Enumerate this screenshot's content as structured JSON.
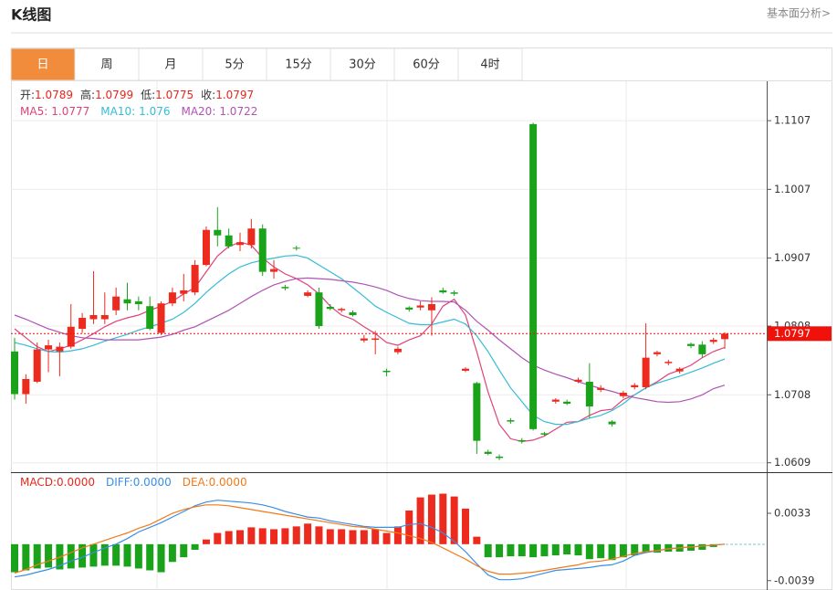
{
  "header": {
    "title": "K线图",
    "link": "基本面分析>"
  },
  "tabs": [
    "日",
    "周",
    "月",
    "5分",
    "15分",
    "30分",
    "60分",
    "4时"
  ],
  "chart_data": [
    {
      "type": "candlestick",
      "up_color": "#ec2a1e",
      "down_color": "#1aa31a",
      "info_labels": [
        "开:",
        "高:",
        "低:",
        "收:"
      ],
      "open": [
        1.0771,
        1.0709,
        1.0727,
        1.0774,
        1.0771,
        1.0778,
        1.0804,
        1.0818,
        1.0818,
        1.0831,
        1.0847,
        1.0844,
        1.0837,
        1.0798,
        1.0841,
        1.0855,
        1.0857,
        1.0897,
        1.0948,
        1.094,
        1.0926,
        1.0926,
        1.095,
        1.0887,
        1.0865,
        1.0922,
        1.0852,
        1.0857,
        1.0836,
        1.0831,
        1.0828,
        1.0787,
        1.0788,
        1.0743,
        1.077,
        1.0835,
        1.0835,
        1.0831,
        1.086,
        1.0857,
        1.0743,
        1.0725,
        1.0625,
        1.0618,
        1.0671,
        1.0642,
        1.1102,
        1.0652,
        1.0698,
        1.0698,
        1.0727,
        1.0727,
        1.0715,
        1.0669,
        1.0706,
        1.0719,
        1.0719,
        1.0767,
        1.0754,
        1.0742,
        1.0782,
        1.0781,
        1.0785,
        1.0789
      ],
      "high": [
        1.0791,
        1.0738,
        1.0784,
        1.0788,
        1.0784,
        1.084,
        1.0827,
        1.0888,
        1.0857,
        1.0864,
        1.0871,
        1.0851,
        1.0851,
        1.0844,
        1.0864,
        1.0884,
        1.0904,
        1.0953,
        1.0981,
        1.095,
        1.0944,
        1.0964,
        1.0956,
        1.0904,
        1.0868,
        1.0925,
        1.086,
        1.0864,
        1.084,
        1.0835,
        1.0831,
        1.0795,
        1.0801,
        1.0746,
        1.0778,
        1.0837,
        1.0844,
        1.085,
        1.0864,
        1.086,
        1.0748,
        1.0727,
        1.0628,
        1.0621,
        1.0674,
        1.0645,
        1.1104,
        1.0654,
        1.0703,
        1.0701,
        1.0733,
        1.0754,
        1.0722,
        1.0671,
        1.0714,
        1.0725,
        1.0812,
        1.0772,
        1.0759,
        1.0748,
        1.0784,
        1.0786,
        1.0791,
        1.0799
      ],
      "low": [
        1.0701,
        1.0695,
        1.0725,
        1.0741,
        1.0735,
        1.0775,
        1.0798,
        1.0811,
        1.0811,
        1.0824,
        1.0831,
        1.0831,
        1.0802,
        1.0795,
        1.0837,
        1.0844,
        1.0853,
        1.0895,
        1.0924,
        1.0921,
        1.0917,
        1.0921,
        1.0881,
        1.0877,
        1.086,
        1.0918,
        1.085,
        1.0804,
        1.0831,
        1.0828,
        1.0822,
        1.0784,
        1.0767,
        1.0735,
        1.0767,
        1.0829,
        1.0831,
        1.0794,
        1.0855,
        1.0852,
        1.0741,
        1.0622,
        1.062,
        1.0613,
        1.0666,
        1.0637,
        1.0656,
        1.0648,
        1.0695,
        1.0693,
        1.0725,
        1.0674,
        1.0712,
        1.0662,
        1.0703,
        1.0716,
        1.0716,
        1.0764,
        1.0751,
        1.0739,
        1.0776,
        1.0762,
        1.0782,
        1.0775
      ],
      "close": [
        1.0709,
        1.0731,
        1.0774,
        1.078,
        1.0778,
        1.0807,
        1.082,
        1.0824,
        1.0824,
        1.0851,
        1.0841,
        1.084,
        1.0804,
        1.0841,
        1.0857,
        1.086,
        1.0897,
        1.0948,
        1.094,
        1.0924,
        1.093,
        1.095,
        1.0887,
        1.0891,
        1.0863,
        1.0921,
        1.0857,
        1.0808,
        1.0833,
        1.0833,
        1.0824,
        1.079,
        1.079,
        1.0741,
        1.0775,
        1.0832,
        1.0838,
        1.084,
        1.0857,
        1.0855,
        1.0746,
        1.0641,
        1.0622,
        1.0616,
        1.0669,
        1.064,
        1.0658,
        1.065,
        1.0701,
        1.0695,
        1.073,
        1.0691,
        1.0718,
        1.0665,
        1.0711,
        1.0722,
        1.0762,
        1.077,
        1.0756,
        1.0746,
        1.0779,
        1.0767,
        1.0788,
        1.0797
      ],
      "series": [
        {
          "label": "MA5:",
          "color": "#e0417a",
          "values": [
            1.0804,
            1.0791,
            1.0778,
            1.0771,
            1.0775,
            1.078,
            1.0788,
            1.0797,
            1.0807,
            1.0815,
            1.082,
            1.0824,
            1.0831,
            1.0837,
            1.0844,
            1.0855,
            1.0864,
            1.0887,
            1.091,
            1.0924,
            1.093,
            1.0926,
            1.0907,
            1.0894,
            1.0884,
            1.0877,
            1.0868,
            1.0855,
            1.0837,
            1.0824,
            1.0818,
            1.0807,
            1.0797,
            1.0784,
            1.078,
            1.0788,
            1.0794,
            1.0811,
            1.0837,
            1.0847,
            1.0824,
            1.0771,
            1.0712,
            1.0665,
            1.0644,
            1.064,
            1.0642,
            1.0648,
            1.0658,
            1.0668,
            1.0669,
            1.0678,
            1.0685,
            1.0687,
            1.0701,
            1.0708,
            1.0718,
            1.0727,
            1.0738,
            1.0744,
            1.0751,
            1.0762,
            1.0771,
            1.0777
          ]
        },
        {
          "label": "MA10:",
          "color": "#35bcd6",
          "values": [
            1.0784,
            1.078,
            1.0775,
            1.0771,
            1.077,
            1.0772,
            1.0775,
            1.078,
            1.0786,
            1.0791,
            1.0796,
            1.0802,
            1.0807,
            1.0812,
            1.0818,
            1.0828,
            1.0841,
            1.0857,
            1.0871,
            1.0884,
            1.0894,
            1.09,
            1.0904,
            1.0907,
            1.091,
            1.0911,
            1.0907,
            1.0897,
            1.0887,
            1.0877,
            1.0864,
            1.0851,
            1.0837,
            1.0828,
            1.082,
            1.0812,
            1.081,
            1.081,
            1.0814,
            1.0818,
            1.0811,
            1.0794,
            1.0771,
            1.0744,
            1.0718,
            1.0698,
            1.0678,
            1.0669,
            1.0665,
            1.0665,
            1.0669,
            1.0674,
            1.0678,
            1.0685,
            1.0695,
            1.0708,
            1.0718,
            1.0725,
            1.073,
            1.0735,
            1.0741,
            1.0747,
            1.0754,
            1.076
          ]
        },
        {
          "label": "MA20:",
          "color": "#b053b5",
          "values": [
            1.0824,
            1.0818,
            1.0811,
            1.0804,
            1.0799,
            1.0794,
            1.0791,
            1.079,
            1.0788,
            1.0788,
            1.0788,
            1.0788,
            1.079,
            1.0792,
            1.0796,
            1.0802,
            1.0807,
            1.0815,
            1.0823,
            1.0831,
            1.0841,
            1.0851,
            1.086,
            1.0868,
            1.0873,
            1.0877,
            1.0878,
            1.0877,
            1.0876,
            1.0874,
            1.0872,
            1.0869,
            1.0865,
            1.086,
            1.0853,
            1.0848,
            1.0845,
            1.0844,
            1.0844,
            1.0843,
            1.0831,
            1.0815,
            1.0802,
            1.0788,
            1.0775,
            1.0762,
            1.0751,
            1.0744,
            1.0738,
            1.0733,
            1.0727,
            1.0722,
            1.0717,
            1.0713,
            1.0708,
            1.0704,
            1.0701,
            1.0698,
            1.0697,
            1.0698,
            1.0702,
            1.0708,
            1.0717,
            1.0722
          ]
        }
      ],
      "last_price": 1.0797,
      "last_color": "#f0120a",
      "ylim": [
        1.0598,
        1.1163
      ],
      "yticks": [
        1.0609,
        1.0708,
        1.0808,
        1.0907,
        1.1007,
        1.1107
      ],
      "grid": true
    },
    {
      "type": "macd",
      "up_color": "#ec2a1e",
      "down_color": "#1aa31a",
      "series": [
        {
          "label": "MACD:",
          "value_label": "0.0000",
          "color": "#e8261b",
          "kind": "bar",
          "values": [
            -0.003,
            -0.0028,
            -0.0026,
            -0.0025,
            -0.0027,
            -0.0026,
            -0.0025,
            -0.0024,
            -0.0023,
            -0.0023,
            -0.0024,
            -0.0026,
            -0.0028,
            -0.003,
            -0.0019,
            -0.0014,
            -0.0006,
            0.0005,
            0.0012,
            0.0014,
            0.0015,
            0.0018,
            0.0017,
            0.0016,
            0.0017,
            0.0019,
            0.0022,
            0.0019,
            0.0016,
            0.0016,
            0.0015,
            0.0015,
            0.0016,
            0.0012,
            0.0019,
            0.0036,
            0.005,
            0.0053,
            0.0054,
            0.0051,
            0.0038,
            0.0008,
            -0.0014,
            -0.0014,
            -0.0013,
            -0.0013,
            -0.0014,
            -0.0013,
            -0.0012,
            -0.0011,
            -0.0012,
            -0.0016,
            -0.0015,
            -0.0017,
            -0.0014,
            -0.0012,
            -0.0009,
            -0.0009,
            -0.0008,
            -0.0008,
            -0.0007,
            -0.0006,
            -0.0003,
            0
          ]
        },
        {
          "label": "DIFF:",
          "value_label": "0.0000",
          "color": "#3a8ee6",
          "kind": "line",
          "values": [
            -0.0035,
            -0.0033,
            -0.003,
            -0.0027,
            -0.0023,
            -0.0018,
            -0.0014,
            -0.0009,
            -0.0004,
            0,
            0.0006,
            0.0013,
            0.0018,
            0.0023,
            0.0029,
            0.0035,
            0.0041,
            0.0045,
            0.0047,
            0.0046,
            0.0045,
            0.0044,
            0.0042,
            0.0039,
            0.0035,
            0.0032,
            0.0029,
            0.0028,
            0.0025,
            0.0023,
            0.0021,
            0.0019,
            0.0018,
            0.0018,
            0.0018,
            0.0021,
            0.0022,
            0.0018,
            0.0012,
            0.0003,
            -0.0008,
            -0.0021,
            -0.0033,
            -0.0038,
            -0.0038,
            -0.0037,
            -0.0034,
            -0.0031,
            -0.0028,
            -0.0027,
            -0.0026,
            -0.0025,
            -0.0023,
            -0.0022,
            -0.0018,
            -0.0012,
            -0.0009,
            -0.0007,
            -0.0005,
            -0.0004,
            -0.0003,
            -0.0002,
            -0.0001,
            0
          ]
        },
        {
          "label": "DEA:",
          "value_label": "0.0000",
          "color": "#f07a1a",
          "kind": "line",
          "values": [
            -0.0031,
            -0.0027,
            -0.0022,
            -0.0018,
            -0.0014,
            -0.0009,
            -0.0004,
            0,
            0.0004,
            0.0008,
            0.0012,
            0.0017,
            0.0021,
            0.0027,
            0.0033,
            0.0037,
            0.004,
            0.0042,
            0.0042,
            0.0041,
            0.0039,
            0.0037,
            0.0035,
            0.0033,
            0.0031,
            0.0029,
            0.0027,
            0.0025,
            0.0023,
            0.0021,
            0.0019,
            0.0018,
            0.0016,
            0.0014,
            0.0012,
            0.0009,
            0.0006,
            0.0002,
            -0.0004,
            -0.001,
            -0.0016,
            -0.0023,
            -0.0029,
            -0.0032,
            -0.0032,
            -0.0031,
            -0.003,
            -0.0028,
            -0.0026,
            -0.0024,
            -0.0022,
            -0.0019,
            -0.0018,
            -0.0016,
            -0.0013,
            -0.001,
            -0.0008,
            -0.0007,
            -0.0005,
            -0.0004,
            -0.0003,
            -0.0002,
            -0.0001,
            0
          ]
        }
      ],
      "ylim": [
        -0.0049,
        0.0076
      ],
      "yticks": [
        -0.0039,
        0.0033
      ]
    }
  ]
}
